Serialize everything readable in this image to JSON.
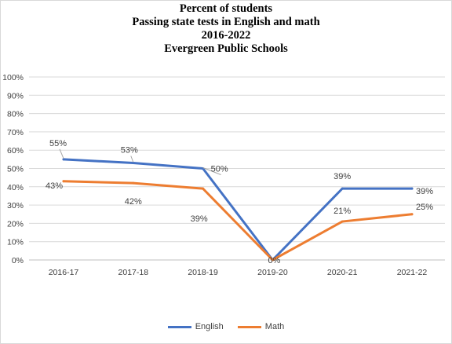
{
  "chart_data": {
    "type": "line",
    "title_lines": [
      "Percent of students",
      "Passing state tests in English  and math",
      "2016-2022",
      "Evergreen Public Schools"
    ],
    "categories": [
      "2016-17",
      "2017-18",
      "2018-19",
      "2019-20",
      "2020-21",
      "2021-22"
    ],
    "series": [
      {
        "name": "English",
        "color": "#4472C4",
        "values": [
          55,
          53,
          50,
          0,
          39,
          39
        ],
        "labels": [
          "55%",
          "53%",
          "50%",
          "",
          "39%",
          "39%"
        ]
      },
      {
        "name": "Math",
        "color": "#ED7D31",
        "values": [
          43,
          42,
          39,
          0,
          21,
          25
        ],
        "labels": [
          "43%",
          "42%",
          "39%",
          "0%",
          "21%",
          "25%"
        ]
      }
    ],
    "y_ticks": [
      "0%",
      "10%",
      "20%",
      "30%",
      "40%",
      "50%",
      "60%",
      "70%",
      "80%",
      "90%",
      "100%"
    ],
    "ylim": [
      0,
      100
    ],
    "grid": true,
    "legend_position": "bottom"
  }
}
